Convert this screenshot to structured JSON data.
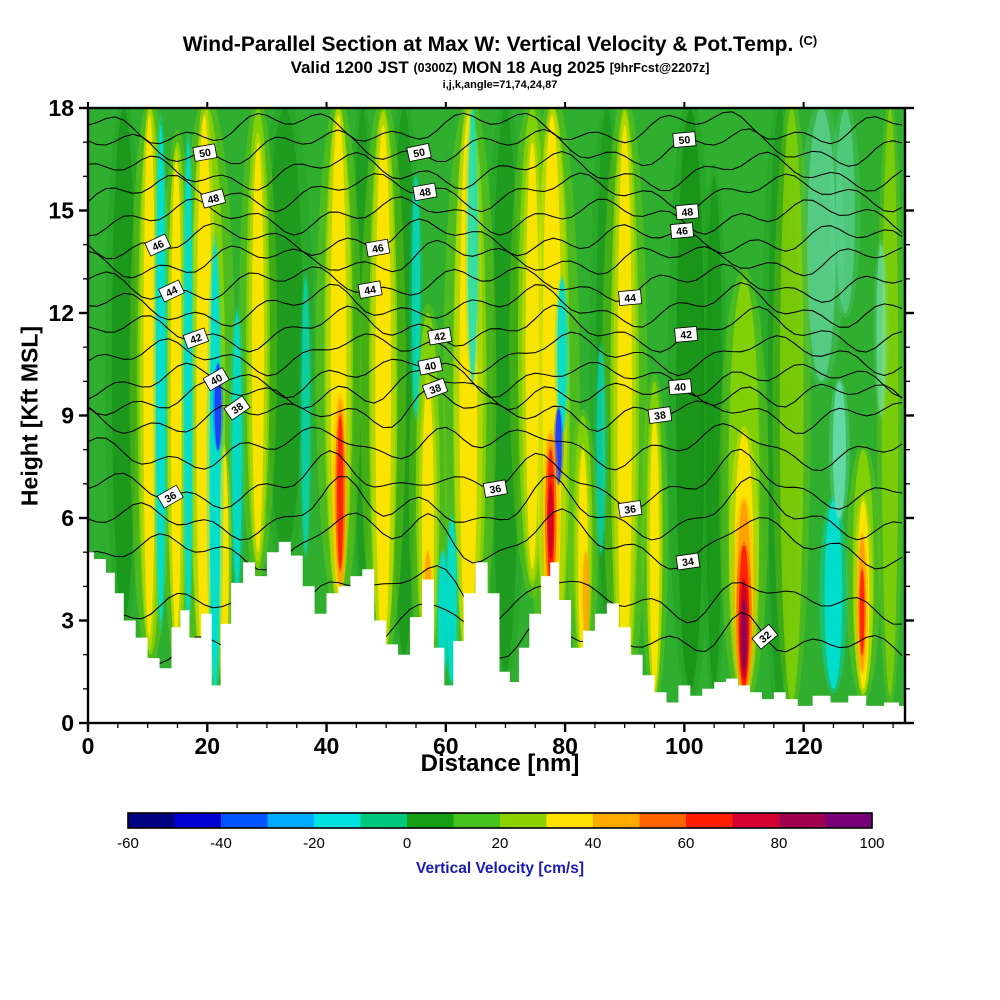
{
  "header": {
    "title_main": "Wind-Parallel Section at Max W: Vertical Velocity & Pot.Temp.",
    "title_unit": "(C)",
    "valid_prefix": "Valid 1200 JST",
    "valid_z": "(0300Z)",
    "valid_date": "MON 18 Aug 2025",
    "fcst_tag": "[9hrFcst@2207z]",
    "params_line": "i,j,k,angle=71,74,24,87"
  },
  "chart_data": {
    "type": "heatmap",
    "subtype": "filled-contour-vertical-cross-section",
    "title": "Wind-Parallel Section at Max W: Vertical Velocity & Pot.Temp. (C)",
    "xlabel": "Distance [nm]",
    "ylabel": "Height [Kft MSL]",
    "xlim": [
      0,
      137
    ],
    "ylim": [
      0,
      18
    ],
    "xticks": [
      0,
      20,
      40,
      60,
      80,
      100,
      120
    ],
    "yticks": [
      0,
      3,
      6,
      9,
      12,
      15,
      18
    ],
    "x_minor_step": 5,
    "y_minor_step": 1,
    "grid": false,
    "fields": {
      "fill": "Vertical Velocity (cm/s)",
      "contours": "Potential Temperature (C)"
    },
    "base_fill_color": "#2fae2f",
    "terrain_color": "#ffffff",
    "palette": {
      "dg": "#0e870e",
      "lg": "#8fd400",
      "y": "#ffe400",
      "cy": "#00ded2",
      "lc": "#74e3c8",
      "bl": "#1e3cff",
      "or": "#ff9e00",
      "rd": "#ff2000",
      "dr": "#cd0028",
      "mr": "#8c0055"
    },
    "colorbar": {
      "label": "Vertical Velocity [cm/s]",
      "label_color": "#1a1ab4",
      "ticks": [
        -60,
        -40,
        -20,
        0,
        20,
        40,
        60,
        80,
        100
      ],
      "band_colors": [
        "#000082",
        "#0000d2",
        "#0055ff",
        "#00aaff",
        "#00e1e1",
        "#00c87d",
        "#16a016",
        "#46c31e",
        "#8cd200",
        "#ffe100",
        "#ffaa00",
        "#ff6400",
        "#ff1e00",
        "#d20032",
        "#a00050",
        "#780078"
      ]
    },
    "terrain_profile": [
      [
        0,
        5.0
      ],
      [
        2,
        4.8
      ],
      [
        4,
        4.4
      ],
      [
        5,
        3.8
      ],
      [
        7,
        3.0
      ],
      [
        9,
        2.5
      ],
      [
        11,
        1.9
      ],
      [
        13,
        1.6
      ],
      [
        15,
        2.8
      ],
      [
        16,
        3.3
      ],
      [
        18,
        2.5
      ],
      [
        20,
        3.2
      ],
      [
        21.5,
        1.1
      ],
      [
        23,
        2.9
      ],
      [
        25,
        4.1
      ],
      [
        27,
        4.7
      ],
      [
        29,
        4.3
      ],
      [
        31,
        5.0
      ],
      [
        33,
        5.3
      ],
      [
        35,
        4.9
      ],
      [
        37,
        4.0
      ],
      [
        39,
        3.2
      ],
      [
        41,
        3.8
      ],
      [
        43,
        4.0
      ],
      [
        45,
        4.3
      ],
      [
        47,
        4.5
      ],
      [
        49,
        3.0
      ],
      [
        51,
        2.3
      ],
      [
        53,
        2.0
      ],
      [
        55,
        3.1
      ],
      [
        57,
        4.2
      ],
      [
        59,
        2.2
      ],
      [
        60.5,
        1.1
      ],
      [
        62,
        2.4
      ],
      [
        64,
        3.8
      ],
      [
        66,
        4.7
      ],
      [
        68,
        3.8
      ],
      [
        70,
        1.5
      ],
      [
        71.5,
        1.2
      ],
      [
        73,
        2.2
      ],
      [
        75,
        3.2
      ],
      [
        77,
        4.3
      ],
      [
        78,
        4.7
      ],
      [
        80,
        3.6
      ],
      [
        82,
        2.2
      ],
      [
        84,
        2.7
      ],
      [
        86,
        3.2
      ],
      [
        88,
        3.5
      ],
      [
        90,
        2.8
      ],
      [
        92,
        2.0
      ],
      [
        94,
        1.4
      ],
      [
        96,
        0.9
      ],
      [
        98,
        0.6
      ],
      [
        100,
        1.1
      ],
      [
        102,
        0.8
      ],
      [
        104,
        1.0
      ],
      [
        106,
        1.2
      ],
      [
        108,
        1.3
      ],
      [
        110,
        1.1
      ],
      [
        112,
        0.9
      ],
      [
        114,
        0.7
      ],
      [
        116,
        0.9
      ],
      [
        118,
        0.7
      ],
      [
        120,
        0.5
      ],
      [
        123,
        0.8
      ],
      [
        126,
        0.6
      ],
      [
        129,
        0.8
      ],
      [
        132,
        0.5
      ],
      [
        135,
        0.6
      ],
      [
        137,
        0.5
      ]
    ],
    "pot_temp_contours": {
      "labeled_levels": [
        32,
        34,
        36,
        38,
        40,
        42,
        44,
        46,
        48,
        50
      ],
      "wave_centers": [
        42,
        57.5,
        77.5,
        110
      ],
      "levels": [
        {
          "v": 32,
          "h": 2.1
        },
        {
          "v": 33,
          "h": 3.3
        },
        {
          "v": 34,
          "h": 5.0
        },
        {
          "v": 35,
          "h": 5.9
        },
        {
          "v": 36,
          "h": 6.8
        },
        {
          "v": 37,
          "h": 7.9
        },
        {
          "v": 38,
          "h": 8.9
        },
        {
          "v": 39,
          "h": 9.5
        },
        {
          "v": 40,
          "h": 10.0
        },
        {
          "v": 41,
          "h": 10.7
        },
        {
          "v": 42,
          "h": 11.4
        },
        {
          "v": 43,
          "h": 12.1
        },
        {
          "v": 44,
          "h": 12.8
        },
        {
          "v": 45,
          "h": 13.5
        },
        {
          "v": 46,
          "h": 14.1
        },
        {
          "v": 47,
          "h": 14.8
        },
        {
          "v": 48,
          "h": 15.5
        },
        {
          "v": 49,
          "h": 16.1
        },
        {
          "v": 50,
          "h": 16.8
        },
        {
          "v": 51,
          "h": 17.4
        }
      ],
      "labels": [
        {
          "v": 50,
          "x": 19.6,
          "y": 17.0,
          "r": -10
        },
        {
          "v": 50,
          "x": 55.5,
          "y": 16.9,
          "r": -12
        },
        {
          "v": 50,
          "x": 100,
          "y": 16.7,
          "r": -5
        },
        {
          "v": 48,
          "x": 21,
          "y": 15.4,
          "r": -15
        },
        {
          "v": 48,
          "x": 56.5,
          "y": 15.7,
          "r": -10
        },
        {
          "v": 48,
          "x": 100.5,
          "y": 15.4,
          "r": -5
        },
        {
          "v": 46,
          "x": 11.7,
          "y": 14.0,
          "r": -25
        },
        {
          "v": 46,
          "x": 48.6,
          "y": 14.1,
          "r": -10
        },
        {
          "v": 46,
          "x": 99.6,
          "y": 14.2,
          "r": -5
        },
        {
          "v": 44,
          "x": 14,
          "y": 12.8,
          "r": -25
        },
        {
          "v": 44,
          "x": 47.3,
          "y": 12.8,
          "r": -10
        },
        {
          "v": 44,
          "x": 90.9,
          "y": 13.0,
          "r": -5
        },
        {
          "v": 42,
          "x": 18.1,
          "y": 11.4,
          "r": -20
        },
        {
          "v": 42,
          "x": 59,
          "y": 11.3,
          "r": -10
        },
        {
          "v": 42,
          "x": 100.3,
          "y": 11.7,
          "r": -5
        },
        {
          "v": 40,
          "x": 21.5,
          "y": 9.9,
          "r": -30
        },
        {
          "v": 40,
          "x": 57.4,
          "y": 10.0,
          "r": -12
        },
        {
          "v": 40,
          "x": 99.3,
          "y": 10.2,
          "r": -5
        },
        {
          "v": 38,
          "x": 25,
          "y": 8.9,
          "r": -35
        },
        {
          "v": 38,
          "x": 58.2,
          "y": 9.2,
          "r": -20
        },
        {
          "v": 38,
          "x": 95.9,
          "y": 8.7,
          "r": -8
        },
        {
          "v": 36,
          "x": 13.8,
          "y": 7.1,
          "r": -30
        },
        {
          "v": 36,
          "x": 68.3,
          "y": 6.8,
          "r": -10
        },
        {
          "v": 36,
          "x": 90.9,
          "y": 6.6,
          "r": -8
        },
        {
          "v": 34,
          "x": 100.6,
          "y": 5.0,
          "r": -8
        },
        {
          "v": 32,
          "x": 113.5,
          "y": 2.1,
          "r": -40
        }
      ]
    },
    "fill_features": [
      {
        "x": 6,
        "w": 2.0,
        "y0": 3,
        "y1": 18,
        "c": "dg",
        "o": 0.45
      },
      {
        "x": 33,
        "w": 3.0,
        "y0": 5,
        "y1": 18,
        "c": "dg",
        "o": 0.4
      },
      {
        "x": 46,
        "w": 1.5,
        "y0": 4,
        "y1": 18,
        "c": "dg",
        "o": 0.35
      },
      {
        "x": 53,
        "w": 2.0,
        "y0": 2,
        "y1": 18,
        "c": "dg",
        "o": 0.4
      },
      {
        "x": 70,
        "w": 2.2,
        "y0": 1.5,
        "y1": 18,
        "c": "dg",
        "o": 0.4
      },
      {
        "x": 87,
        "w": 1.8,
        "y0": 3,
        "y1": 18,
        "c": "dg",
        "o": 0.35
      },
      {
        "x": 101,
        "w": 2.4,
        "y0": 1,
        "y1": 18,
        "c": "dg",
        "o": 0.55
      },
      {
        "x": 105,
        "w": 1.4,
        "y0": 1,
        "y1": 16,
        "c": "dg",
        "o": 0.45
      },
      {
        "x": 116,
        "w": 2.0,
        "y0": 0.5,
        "y1": 18,
        "c": "dg",
        "o": 0.35
      },
      {
        "x": 123,
        "w": 2.4,
        "y0": 10,
        "y1": 18,
        "c": "lc",
        "o": 0.45
      },
      {
        "x": 127,
        "w": 1.6,
        "y0": 12,
        "y1": 18,
        "c": "lc",
        "o": 0.4
      },
      {
        "x": 10.5,
        "w": 2.2,
        "y0": 2,
        "y1": 18,
        "c": "lg",
        "o": 0.85
      },
      {
        "x": 15,
        "w": 1.8,
        "y0": 2,
        "y1": 17,
        "c": "lg",
        "o": 0.85
      },
      {
        "x": 20,
        "w": 3.0,
        "y0": 1,
        "y1": 18,
        "c": "lg",
        "o": 0.85
      },
      {
        "x": 28.5,
        "w": 2.0,
        "y0": 4.5,
        "y1": 18,
        "c": "lg",
        "o": 0.8
      },
      {
        "x": 42,
        "w": 2.4,
        "y0": 3.5,
        "y1": 18,
        "c": "lg",
        "o": 0.85
      },
      {
        "x": 49.5,
        "w": 2.4,
        "y0": 2,
        "y1": 18,
        "c": "lg",
        "o": 0.85
      },
      {
        "x": 57,
        "w": 2.0,
        "y0": 1.5,
        "y1": 12,
        "c": "lg",
        "o": 0.8
      },
      {
        "x": 64,
        "w": 2.8,
        "y0": 1.5,
        "y1": 18,
        "c": "lg",
        "o": 0.85
      },
      {
        "x": 74.5,
        "w": 2.4,
        "y0": 4,
        "y1": 18,
        "c": "lg",
        "o": 0.8
      },
      {
        "x": 78,
        "w": 2.8,
        "y0": 1,
        "y1": 18,
        "c": "lg",
        "o": 0.85
      },
      {
        "x": 83,
        "w": 1.6,
        "y0": 1.5,
        "y1": 9,
        "c": "lg",
        "o": 0.8
      },
      {
        "x": 90,
        "w": 2.4,
        "y0": 0.8,
        "y1": 18,
        "c": "lg",
        "o": 0.85
      },
      {
        "x": 95,
        "w": 1.4,
        "y0": 0.8,
        "y1": 10,
        "c": "lg",
        "o": 0.8
      },
      {
        "x": 110,
        "w": 2.6,
        "y0": 0.6,
        "y1": 13,
        "c": "lg",
        "o": 0.8
      },
      {
        "x": 118,
        "w": 2.0,
        "y0": 0.6,
        "y1": 18,
        "c": "lg",
        "o": 0.7
      },
      {
        "x": 130,
        "w": 1.8,
        "y0": 0.8,
        "y1": 8,
        "c": "lg",
        "o": 0.8
      },
      {
        "x": 134.5,
        "w": 1.4,
        "y0": 0.8,
        "y1": 18,
        "c": "lg",
        "o": 0.7
      },
      {
        "x": 10.3,
        "w": 1.0,
        "y0": 2.5,
        "y1": 17.8,
        "c": "y",
        "o": 0.95
      },
      {
        "x": 14.8,
        "w": 0.9,
        "y0": 2.5,
        "y1": 16.5,
        "c": "y",
        "o": 0.95
      },
      {
        "x": 19.5,
        "w": 1.3,
        "y0": 1,
        "y1": 17.8,
        "c": "y",
        "o": 0.95
      },
      {
        "x": 22.8,
        "w": 0.8,
        "y0": 1,
        "y1": 8,
        "c": "y",
        "o": 0.9
      },
      {
        "x": 28.5,
        "w": 1.0,
        "y0": 5,
        "y1": 17,
        "c": "y",
        "o": 0.9
      },
      {
        "x": 42,
        "w": 1.3,
        "y0": 3.8,
        "y1": 17.8,
        "c": "y",
        "o": 0.95
      },
      {
        "x": 49.5,
        "w": 1.3,
        "y0": 2,
        "y1": 17.5,
        "c": "y",
        "o": 0.95
      },
      {
        "x": 57,
        "w": 1.0,
        "y0": 1.8,
        "y1": 10,
        "c": "y",
        "o": 0.9
      },
      {
        "x": 63.8,
        "w": 1.5,
        "y0": 1.8,
        "y1": 17.8,
        "c": "y",
        "o": 0.95
      },
      {
        "x": 74.5,
        "w": 1.1,
        "y0": 4.5,
        "y1": 17,
        "c": "y",
        "o": 0.9
      },
      {
        "x": 77.8,
        "w": 1.6,
        "y0": 1.2,
        "y1": 17.8,
        "c": "y",
        "o": 0.95
      },
      {
        "x": 83,
        "w": 0.8,
        "y0": 1.8,
        "y1": 8,
        "c": "y",
        "o": 0.9
      },
      {
        "x": 90,
        "w": 1.2,
        "y0": 1,
        "y1": 17.5,
        "c": "y",
        "o": 0.9
      },
      {
        "x": 95,
        "w": 0.8,
        "y0": 1,
        "y1": 9,
        "c": "y",
        "o": 0.9
      },
      {
        "x": 110,
        "w": 1.6,
        "y0": 0.8,
        "y1": 8.5,
        "c": "y",
        "o": 0.95
      },
      {
        "x": 130,
        "w": 1.0,
        "y0": 1,
        "y1": 6.5,
        "c": "y",
        "o": 0.95
      },
      {
        "x": 12.2,
        "w": 0.8,
        "y0": 3,
        "y1": 17.5,
        "c": "cy",
        "o": 0.95
      },
      {
        "x": 16.8,
        "w": 0.7,
        "y0": 3,
        "y1": 17,
        "c": "cy",
        "o": 0.9
      },
      {
        "x": 21.3,
        "w": 0.9,
        "y0": 1,
        "y1": 14,
        "c": "cy",
        "o": 0.95
      },
      {
        "x": 25,
        "w": 0.8,
        "y0": 4,
        "y1": 12,
        "c": "cy",
        "o": 0.85
      },
      {
        "x": 36.5,
        "w": 0.7,
        "y0": 5,
        "y1": 13,
        "c": "cy",
        "o": 0.6
      },
      {
        "x": 55,
        "w": 0.7,
        "y0": 9,
        "y1": 16,
        "c": "cy",
        "o": 0.7
      },
      {
        "x": 59.5,
        "w": 0.8,
        "y0": 1.5,
        "y1": 5,
        "c": "cy",
        "o": 0.85
      },
      {
        "x": 61,
        "w": 0.8,
        "y0": 1.2,
        "y1": 6,
        "c": "cy",
        "o": 0.85
      },
      {
        "x": 64.5,
        "w": 0.8,
        "y0": 10,
        "y1": 18,
        "c": "cy",
        "o": 0.7
      },
      {
        "x": 79.5,
        "w": 0.8,
        "y0": 8.5,
        "y1": 13,
        "c": "cy",
        "o": 0.9
      },
      {
        "x": 86,
        "w": 0.7,
        "y0": 5,
        "y1": 11,
        "c": "cy",
        "o": 0.6
      },
      {
        "x": 125,
        "w": 1.5,
        "y0": 1,
        "y1": 6.5,
        "c": "cy",
        "o": 0.95
      },
      {
        "x": 126,
        "w": 1.1,
        "y0": 6,
        "y1": 10,
        "c": "lc",
        "o": 0.7
      },
      {
        "x": 133,
        "w": 0.8,
        "y0": 9,
        "y1": 14,
        "c": "lc",
        "o": 0.5
      },
      {
        "x": 21.8,
        "w": 0.55,
        "y0": 8,
        "y1": 10.5,
        "c": "bl",
        "o": 0.95
      },
      {
        "x": 78.9,
        "w": 0.55,
        "y0": 7,
        "y1": 9.2,
        "c": "bl",
        "o": 0.95
      },
      {
        "x": 42.3,
        "w": 0.85,
        "y0": 4,
        "y1": 9.5,
        "c": "or",
        "o": 0.95
      },
      {
        "x": 42.3,
        "w": 0.5,
        "y0": 4.5,
        "y1": 9,
        "c": "rd",
        "o": 0.95
      },
      {
        "x": 57,
        "w": 0.55,
        "y0": 2,
        "y1": 5,
        "c": "or",
        "o": 0.85
      },
      {
        "x": 77.6,
        "w": 0.95,
        "y0": 3.5,
        "y1": 8.5,
        "c": "or",
        "o": 0.95
      },
      {
        "x": 77.6,
        "w": 0.6,
        "y0": 4,
        "y1": 8,
        "c": "rd",
        "o": 0.95
      },
      {
        "x": 77.6,
        "w": 0.38,
        "y0": 4.8,
        "y1": 7,
        "c": "dr",
        "o": 0.95
      },
      {
        "x": 83.5,
        "w": 0.5,
        "y0": 2.5,
        "y1": 5,
        "c": "or",
        "o": 0.7
      },
      {
        "x": 110,
        "w": 1.15,
        "y0": 0.8,
        "y1": 6.5,
        "c": "or",
        "o": 0.95
      },
      {
        "x": 110,
        "w": 0.85,
        "y0": 1,
        "y1": 5.2,
        "c": "rd",
        "o": 0.95
      },
      {
        "x": 110,
        "w": 0.6,
        "y0": 1.3,
        "y1": 4.2,
        "c": "dr",
        "o": 0.95
      },
      {
        "x": 110,
        "w": 0.38,
        "y0": 1.6,
        "y1": 3.6,
        "c": "mr",
        "o": 0.95
      },
      {
        "x": 129.8,
        "w": 0.65,
        "y0": 1.5,
        "y1": 5.5,
        "c": "or",
        "o": 0.95
      },
      {
        "x": 129.8,
        "w": 0.38,
        "y0": 2,
        "y1": 4.5,
        "c": "rd",
        "o": 0.9
      }
    ]
  }
}
